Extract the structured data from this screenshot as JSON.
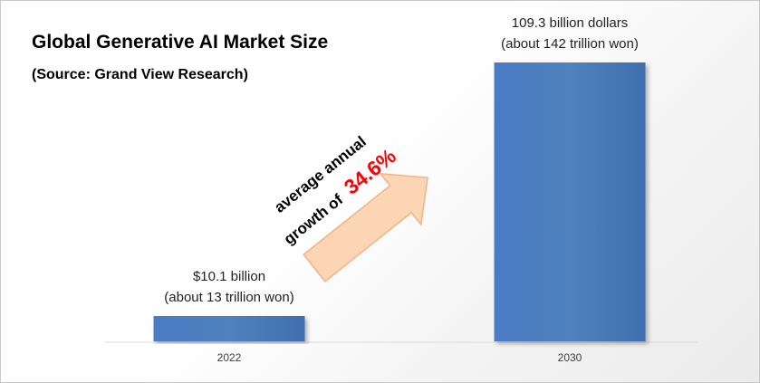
{
  "header": {
    "title": "Global Generative AI Market Size",
    "subtitle": "(Source: Grand View Research)"
  },
  "growth_note": {
    "line1": "average annual",
    "line2_prefix": "growth of",
    "rate": "34.6%",
    "rate_color": "#ff0000",
    "arrow_fill": "#fcd5b4",
    "arrow_stroke": "#f4b183"
  },
  "chart_data": {
    "type": "bar",
    "title": "Global Generative AI Market Size",
    "categories": [
      "2022",
      "2030"
    ],
    "series": [
      {
        "values": [
          10.1,
          109.3
        ],
        "color": "#4f81bd"
      }
    ],
    "unit": "billion dollars",
    "data_labels": [
      [
        "$10.1 billion",
        "(about 13 trillion won)"
      ],
      [
        "109.3 billion dollars",
        "(about 142 trillion won)"
      ]
    ],
    "ylim": [
      0,
      109.3
    ],
    "grid": false,
    "legend": "none",
    "xlabel": "",
    "ylabel": ""
  }
}
